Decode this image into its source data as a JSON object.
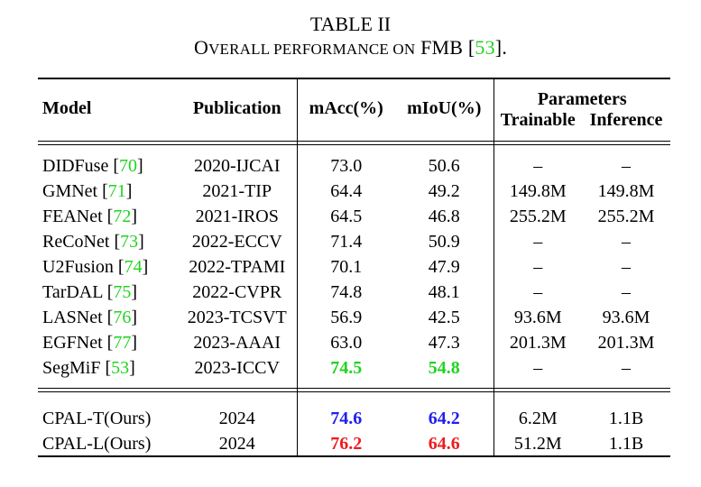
{
  "caption": {
    "table_label": "TABLE II",
    "title_prefix_big": "O",
    "title_prefix_small": "VERALL PERFORMANCE ON",
    "title_dataset": "FMB",
    "title_citation": "53",
    "title_end": "."
  },
  "header": {
    "model": "Model",
    "publication": "Publication",
    "macc": "mAcc(%)",
    "miou": "mIoU(%)",
    "parameters": "Parameters",
    "trainable": "Trainable",
    "inference": "Inference"
  },
  "rows": [
    {
      "model": "DIDFuse",
      "citation": "70",
      "publication": "2020-IJCAI",
      "macc": "73.0",
      "miou": "50.6",
      "trainable": "–",
      "inference": "–"
    },
    {
      "model": "GMNet",
      "citation": "71",
      "publication": "2021-TIP",
      "macc": "64.4",
      "miou": "49.2",
      "trainable": "149.8M",
      "inference": "149.8M"
    },
    {
      "model": "FEANet",
      "citation": "72",
      "publication": "2021-IROS",
      "macc": "64.5",
      "miou": "46.8",
      "trainable": "255.2M",
      "inference": "255.2M"
    },
    {
      "model": "ReCoNet",
      "citation": "73",
      "publication": "2022-ECCV",
      "macc": "71.4",
      "miou": "50.9",
      "trainable": "–",
      "inference": "–"
    },
    {
      "model": "U2Fusion",
      "citation": "74",
      "publication": "2022-TPAMI",
      "macc": "70.1",
      "miou": "47.9",
      "trainable": "–",
      "inference": "–"
    },
    {
      "model": "TarDAL",
      "citation": "75",
      "publication": "2022-CVPR",
      "macc": "74.8",
      "miou": "48.1",
      "trainable": "–",
      "inference": "–"
    },
    {
      "model": "LASNet",
      "citation": "76",
      "publication": "2023-TCSVT",
      "macc": "56.9",
      "miou": "42.5",
      "trainable": "93.6M",
      "inference": "93.6M"
    },
    {
      "model": "EGFNet",
      "citation": "77",
      "publication": "2023-AAAI",
      "macc": "63.0",
      "miou": "47.3",
      "trainable": "201.3M",
      "inference": "201.3M"
    },
    {
      "model": "SegMiF",
      "citation": "53",
      "publication": "2023-ICCV",
      "macc": "74.5",
      "miou": "54.8",
      "trainable": "–",
      "inference": "–"
    }
  ],
  "ours": [
    {
      "model": "CPAL-T(Ours)",
      "publication": "2024",
      "macc": "74.6",
      "miou": "64.2",
      "trainable": "6.2M",
      "inference": "1.1B"
    },
    {
      "model": "CPAL-L(Ours)",
      "publication": "2024",
      "macc": "76.2",
      "miou": "64.6",
      "trainable": "51.2M",
      "inference": "1.1B"
    }
  ],
  "colors": {
    "citation": "#21d321",
    "third_best": "#21d321",
    "second_best": "#1f1ff0",
    "best": "#ee1c1c"
  }
}
